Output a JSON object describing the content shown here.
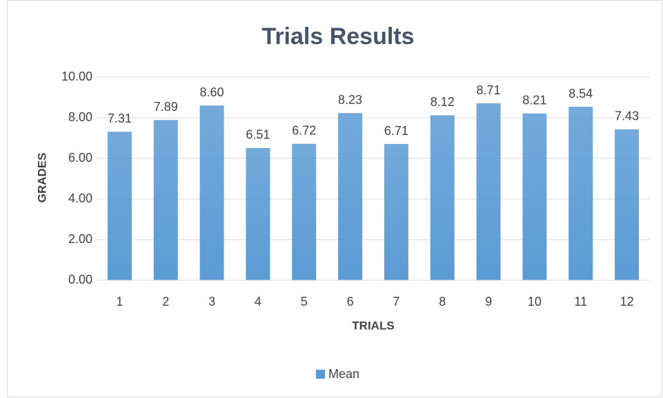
{
  "chart_data": {
    "type": "bar",
    "title": "Trials Results",
    "x_label": "TRIALS",
    "y_label": "GRADES",
    "categories": [
      "1",
      "2",
      "3",
      "4",
      "5",
      "6",
      "7",
      "8",
      "9",
      "10",
      "11",
      "12"
    ],
    "series": [
      {
        "name": "Mean",
        "color": "#5b9bd5",
        "values": [
          7.31,
          7.89,
          8.6,
          6.51,
          6.72,
          8.23,
          6.71,
          8.12,
          8.71,
          8.21,
          8.54,
          7.43
        ],
        "value_labels": [
          "7.31",
          "7.89",
          "8.60",
          "6.51",
          "6.72",
          "8.23",
          "6.71",
          "8.12",
          "8.71",
          "8.21",
          "8.54",
          "7.43"
        ]
      }
    ],
    "ylim": [
      0,
      10
    ],
    "yticks": [
      {
        "value": 0,
        "label": "0.00"
      },
      {
        "value": 2,
        "label": "2.00"
      },
      {
        "value": 4,
        "label": "4.00"
      },
      {
        "value": 6,
        "label": "6.00"
      },
      {
        "value": 8,
        "label": "8.00"
      },
      {
        "value": 10,
        "label": "10.00"
      }
    ],
    "grid": true,
    "legend": "bottom"
  }
}
